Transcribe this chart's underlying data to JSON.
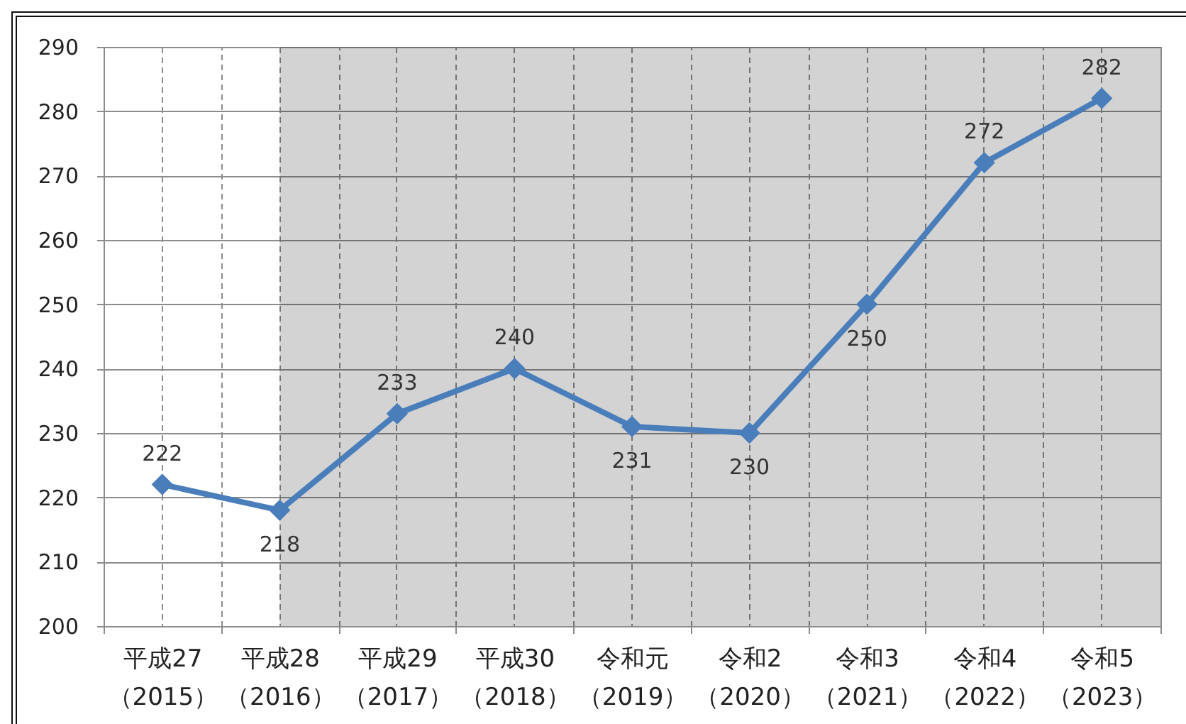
{
  "chart_data": {
    "type": "line",
    "categories": [
      "平成27（2015）",
      "平成28（2016）",
      "平成29（2017）",
      "平成30（2018）",
      "令和元（2019）",
      "令和2（2020）",
      "令和3（2021）",
      "令和4（2022）",
      "令和5（2023）"
    ],
    "series": [
      {
        "color": "#4a7ebb",
        "values": [
          222,
          218,
          233,
          240,
          231,
          230,
          250,
          272,
          282
        ]
      }
    ],
    "ylim": [
      200,
      290
    ],
    "yticks": [
      200,
      210,
      220,
      230,
      240,
      250,
      260,
      270,
      280,
      290
    ],
    "grid": true,
    "marker": "diamond",
    "line_style": "solid",
    "data_labels": true,
    "bands": [
      {
        "axis": "x",
        "from": "平成28（2016）",
        "to": "令和5（2023）",
        "color": "#d3d3d3"
      }
    ]
  }
}
